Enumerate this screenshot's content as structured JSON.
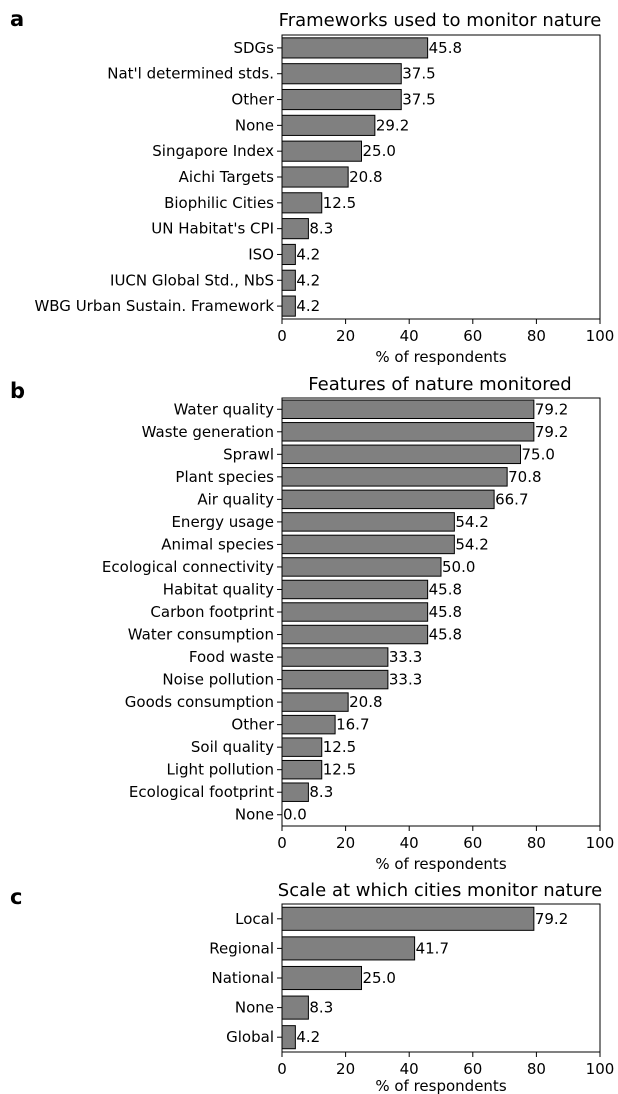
{
  "colors": {
    "bar_fill": "#808080",
    "bar_edge": "#000000"
  },
  "chart_data": [
    {
      "type": "bar",
      "orientation": "horizontal",
      "panel": "a",
      "title": "Frameworks used to monitor nature",
      "xlabel": "% of respondents",
      "xlim": [
        0,
        100
      ],
      "xticks": [
        "0",
        "20",
        "40",
        "60",
        "80",
        "100"
      ],
      "categories": [
        "SDGs",
        "Nat'l determined stds.",
        "Other",
        "None",
        "Singapore Index",
        "Aichi Targets",
        "Biophilic Cities",
        "UN Habitat's CPI",
        "ISO",
        "IUCN Global Std., NbS",
        "WBG Urban Sustain. Framework"
      ],
      "values": [
        45.8,
        37.5,
        37.5,
        29.2,
        25.0,
        20.8,
        12.5,
        8.3,
        4.2,
        4.2,
        4.2
      ],
      "value_labels": [
        "45.8",
        "37.5",
        "37.5",
        "29.2",
        "25.0",
        "20.8",
        "12.5",
        "8.3",
        "4.2",
        "4.2",
        "4.2"
      ],
      "grid": false
    },
    {
      "type": "bar",
      "orientation": "horizontal",
      "panel": "b",
      "title": "Features of nature monitored",
      "xlabel": "% of respondents",
      "xlim": [
        0,
        100
      ],
      "xticks": [
        "0",
        "20",
        "40",
        "60",
        "80",
        "100"
      ],
      "categories": [
        "Water quality",
        "Waste generation",
        "Sprawl",
        "Plant species",
        "Air quality",
        "Energy usage",
        "Animal species",
        "Ecological connectivity",
        "Habitat quality",
        "Carbon footprint",
        "Water consumption",
        "Food waste",
        "Noise pollution",
        "Goods consumption",
        "Other",
        "Soil quality",
        "Light pollution",
        "Ecological footprint",
        "None"
      ],
      "values": [
        79.2,
        79.2,
        75.0,
        70.8,
        66.7,
        54.2,
        54.2,
        50.0,
        45.8,
        45.8,
        45.8,
        33.3,
        33.3,
        20.8,
        16.7,
        12.5,
        12.5,
        8.3,
        0.0
      ],
      "value_labels": [
        "79.2",
        "79.2",
        "75.0",
        "70.8",
        "66.7",
        "54.2",
        "54.2",
        "50.0",
        "45.8",
        "45.8",
        "45.8",
        "33.3",
        "33.3",
        "20.8",
        "16.7",
        "12.5",
        "12.5",
        "8.3",
        "0.0"
      ],
      "grid": false
    },
    {
      "type": "bar",
      "orientation": "horizontal",
      "panel": "c",
      "title": "Scale at which cities monitor nature",
      "xlabel": "% of respondents",
      "xlim": [
        0,
        100
      ],
      "xticks": [
        "0",
        "20",
        "40",
        "60",
        "80",
        "100"
      ],
      "categories": [
        "Local",
        "Regional",
        "National",
        "None",
        "Global"
      ],
      "values": [
        79.2,
        41.7,
        25.0,
        8.3,
        4.2
      ],
      "value_labels": [
        "79.2",
        "41.7",
        "25.0",
        "8.3",
        "4.2"
      ],
      "grid": false
    }
  ]
}
